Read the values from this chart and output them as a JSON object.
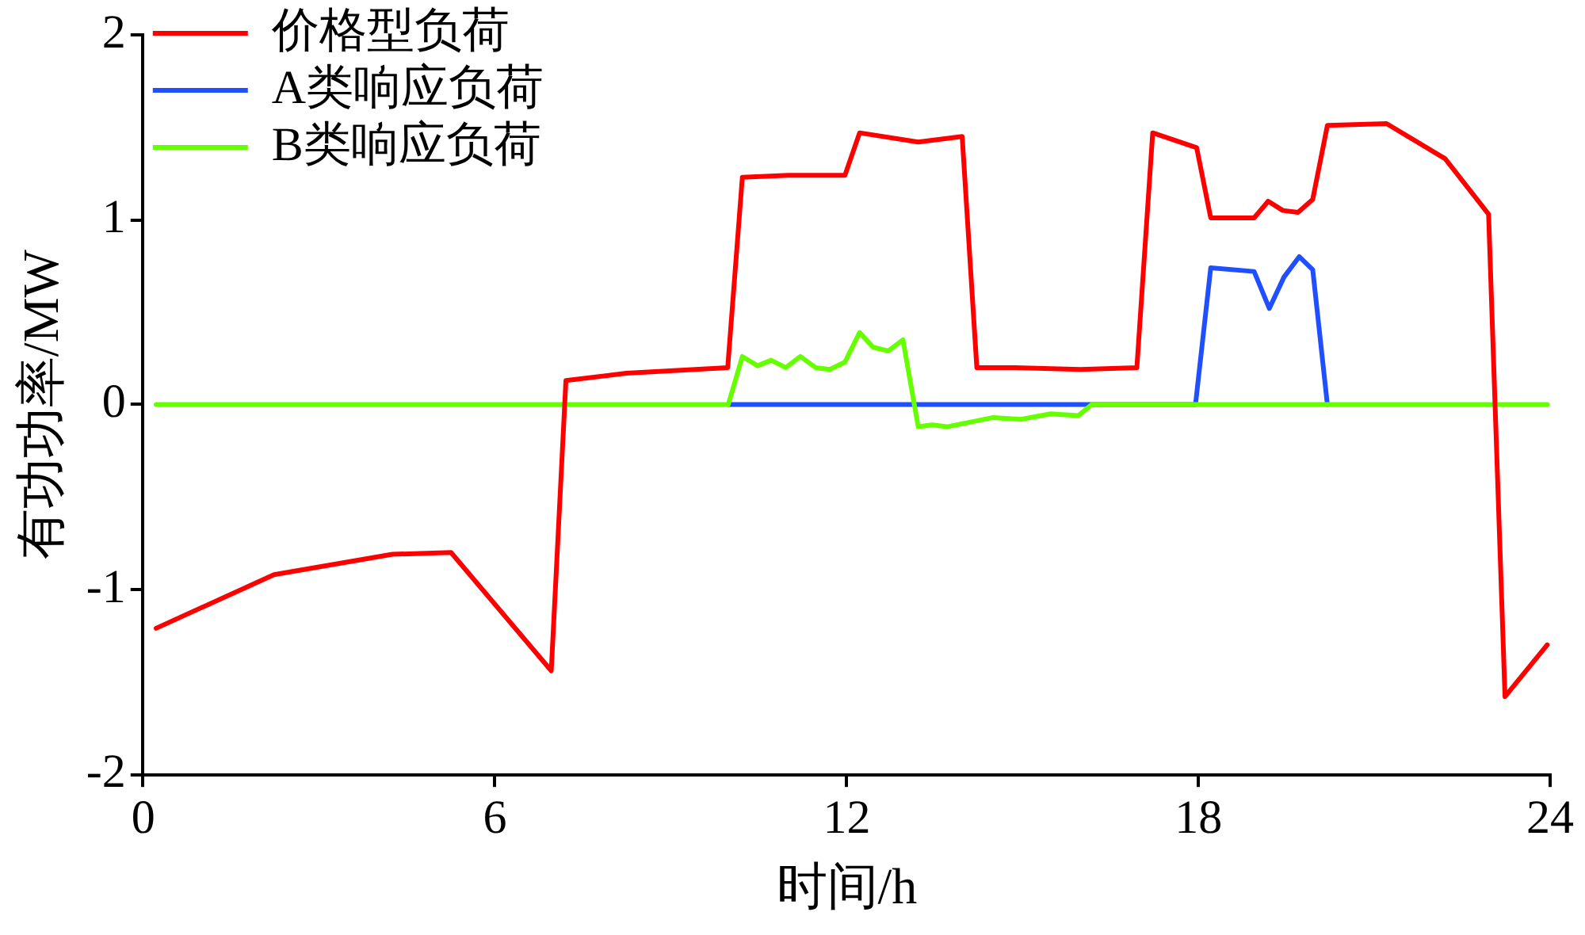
{
  "chart_data": {
    "type": "line",
    "xlabel": "时间/h",
    "ylabel": "有功功率/MW",
    "xlim": [
      0,
      24
    ],
    "xticks": [
      0,
      6,
      12,
      18,
      24
    ],
    "ylim": [
      -2,
      2
    ],
    "yticks": [
      -2,
      -1,
      0,
      1,
      2
    ],
    "grid": false,
    "legend": "top left",
    "marker": "none",
    "line_style": "solid",
    "series": [
      {
        "name": "价格型负荷",
        "color": "#ff0000",
        "x": [
          0.22,
          2.23,
          4.25,
          5.25,
          6.96,
          7.21,
          8.24,
          9.97,
          10.22,
          11.0,
          11.97,
          12.22,
          13.22,
          13.97,
          14.22,
          14.87,
          15.99,
          16.95,
          17.22,
          17.97,
          18.21,
          18.95,
          19.19,
          19.44,
          19.7,
          19.95,
          20.2,
          21.21,
          22.21,
          22.95,
          23.23,
          23.95
        ],
        "values": [
          -1.21,
          -0.92,
          -0.81,
          -0.8,
          -1.44,
          0.13,
          0.17,
          0.2,
          1.23,
          1.24,
          1.24,
          1.47,
          1.42,
          1.45,
          0.2,
          0.2,
          0.19,
          0.2,
          1.47,
          1.39,
          1.01,
          1.01,
          1.1,
          1.05,
          1.04,
          1.11,
          1.51,
          1.52,
          1.33,
          1.03,
          -1.58,
          -1.3
        ]
      },
      {
        "name": "A类响应负荷",
        "color": "#1f4fff",
        "x": [
          9.98,
          16.13,
          17.95,
          18.21,
          18.95,
          19.21,
          19.46,
          19.72,
          19.95,
          20.2
        ],
        "values": [
          0,
          0,
          0,
          0.74,
          0.72,
          0.52,
          0.69,
          0.8,
          0.73,
          0
        ]
      },
      {
        "name": "B类响应负荷",
        "color": "#66ff00",
        "x": [
          0.22,
          9.98,
          10.22,
          10.48,
          10.71,
          10.96,
          11.21,
          11.47,
          11.71,
          11.97,
          12.22,
          12.45,
          12.71,
          12.96,
          13.22,
          13.46,
          13.71,
          14.5,
          14.97,
          15.48,
          15.95,
          16.18,
          23.95
        ],
        "values": [
          0,
          0,
          0.26,
          0.21,
          0.24,
          0.2,
          0.26,
          0.2,
          0.19,
          0.23,
          0.39,
          0.31,
          0.29,
          0.35,
          -0.12,
          -0.11,
          -0.12,
          -0.07,
          -0.08,
          -0.05,
          -0.06,
          0,
          0
        ]
      }
    ]
  }
}
